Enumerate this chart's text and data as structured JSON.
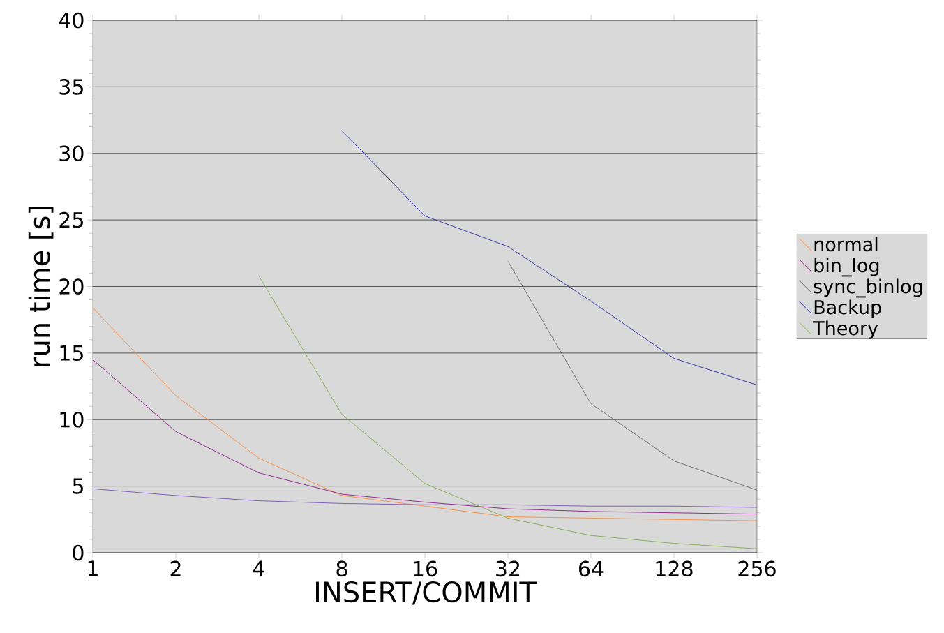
{
  "chart_data": {
    "type": "line",
    "xlabel": "INSERT/COMMIT",
    "ylabel": "run time [s]",
    "categories": [
      "1",
      "2",
      "4",
      "8",
      "16",
      "32",
      "64",
      "128",
      "256"
    ],
    "ylim": [
      0,
      40
    ],
    "yticks": [
      0,
      5,
      10,
      15,
      20,
      25,
      30,
      35,
      40
    ],
    "grid": "y",
    "legend": "right",
    "marker": "none",
    "line_style": "solid",
    "series": [
      {
        "name": "normal",
        "color": "#ff7f27",
        "values": [
          18.4,
          11.8,
          7.1,
          4.3,
          3.5,
          2.7,
          2.6,
          2.5,
          2.4
        ]
      },
      {
        "name": "bin_log",
        "color": "#800080",
        "values": [
          14.5,
          9.1,
          6.0,
          4.4,
          3.8,
          3.3,
          3.1,
          3.0,
          2.9
        ]
      },
      {
        "name": "sync_binlog",
        "color": "#555555",
        "values": [
          null,
          null,
          null,
          null,
          null,
          21.9,
          11.2,
          6.9,
          4.7
        ]
      },
      {
        "color": "#6a3fb0",
        "values": [
          4.8,
          4.3,
          3.9,
          3.7,
          3.6,
          3.6,
          3.5,
          3.5,
          3.4
        ]
      },
      {
        "name": "Backup",
        "color": "#10109a",
        "values": [
          null,
          null,
          null,
          31.7,
          25.3,
          23.0,
          18.9,
          14.6,
          12.6
        ]
      },
      {
        "name": "Theory",
        "color": "#77a33b",
        "values": [
          null,
          null,
          20.8,
          10.4,
          5.2,
          2.6,
          1.3,
          0.7,
          0.3
        ]
      }
    ]
  }
}
